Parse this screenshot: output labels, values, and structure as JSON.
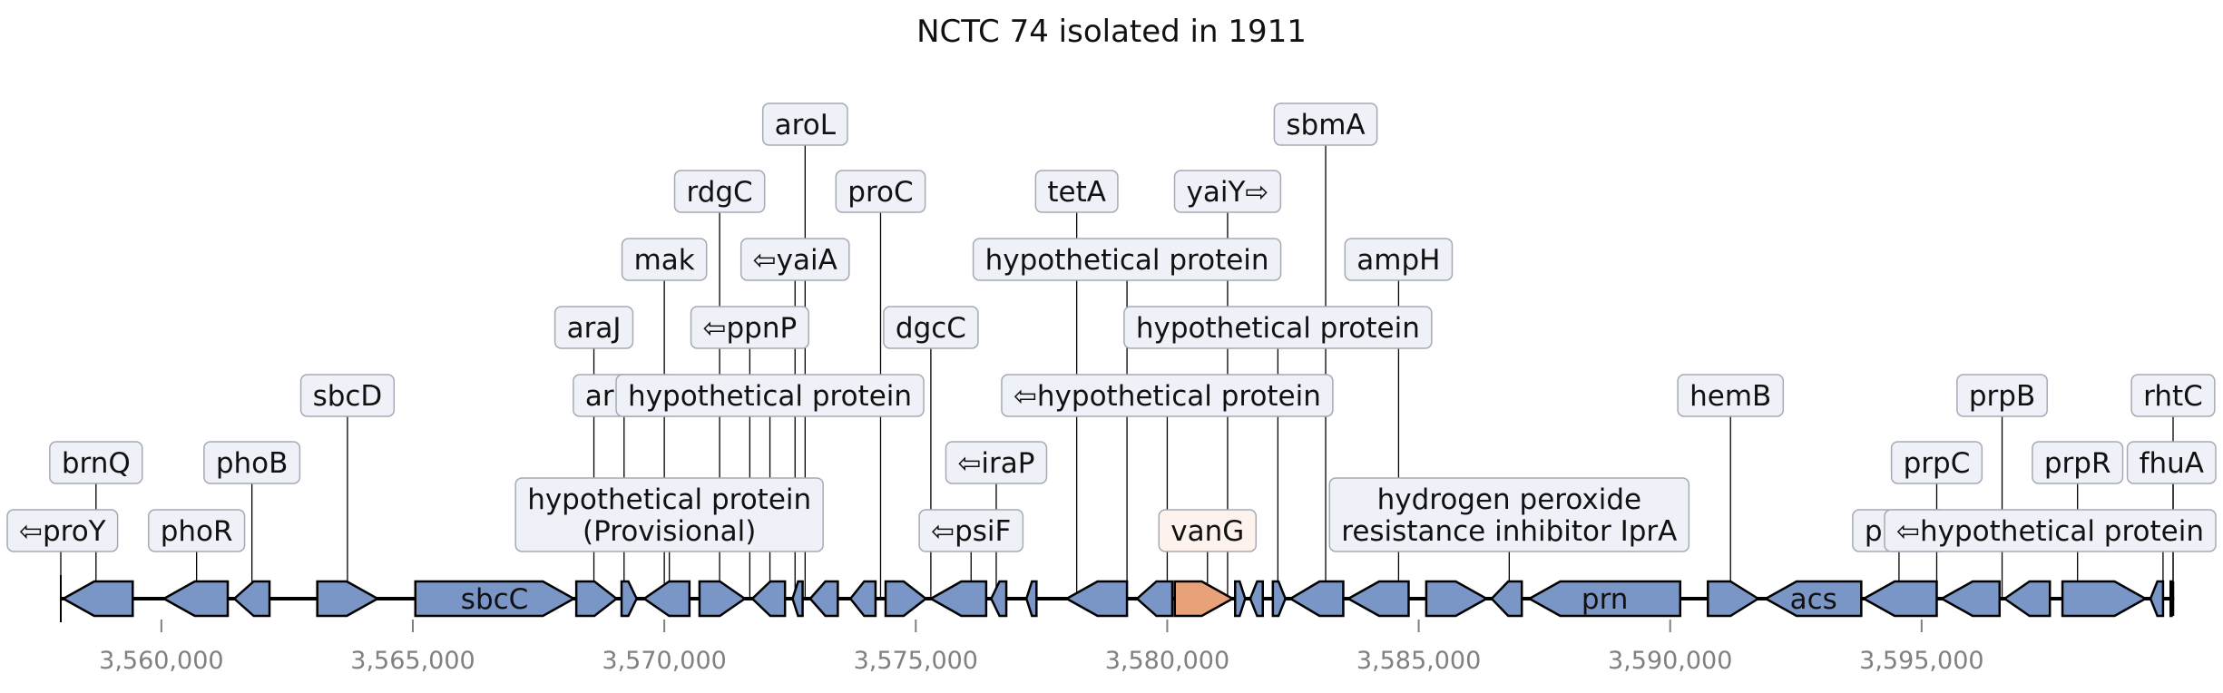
{
  "title": "NCTC 74 isolated in 1911",
  "colors": {
    "gene_fill": "#7a96c6",
    "highlight_fill": "#e8a27a",
    "box_fill": "#eef1f7",
    "highlight_box_fill": "#fdf2ec",
    "box_stroke": "#a7aab4",
    "axis_tick": "#808080"
  },
  "axis": {
    "range": [
      3558000,
      3600000
    ],
    "ticks": [
      {
        "value": 3560000,
        "label": "3,560,000"
      },
      {
        "value": 3565000,
        "label": "3,565,000"
      },
      {
        "value": 3570000,
        "label": "3,570,000"
      },
      {
        "value": 3575000,
        "label": "3,575,000"
      },
      {
        "value": 3580000,
        "label": "3,580,000"
      },
      {
        "value": 3585000,
        "label": "3,585,000"
      },
      {
        "value": 3590000,
        "label": "3,590,000"
      },
      {
        "value": 3595000,
        "label": "3,595,000"
      }
    ]
  },
  "genes": [
    {
      "start": 3558050,
      "end": 3559430,
      "strand": -1
    },
    {
      "start": 3560050,
      "end": 3561320,
      "strand": -1
    },
    {
      "start": 3561450,
      "end": 3562150,
      "strand": -1
    },
    {
      "start": 3563100,
      "end": 3564300,
      "strand": 1
    },
    {
      "start": 3565050,
      "end": 3568200,
      "strand": 1,
      "label": "sbcC"
    },
    {
      "start": 3568250,
      "end": 3569050,
      "strand": 1
    },
    {
      "start": 3569150,
      "end": 3569450,
      "strand": 1
    },
    {
      "start": 3569600,
      "end": 3570500,
      "strand": -1
    },
    {
      "start": 3570700,
      "end": 3571600,
      "strand": 1
    },
    {
      "start": 3571750,
      "end": 3572400,
      "strand": -1
    },
    {
      "start": 3572550,
      "end": 3572750,
      "strand": -1
    },
    {
      "start": 3572900,
      "end": 3573450,
      "strand": -1
    },
    {
      "start": 3573700,
      "end": 3574200,
      "strand": -1
    },
    {
      "start": 3574400,
      "end": 3575200,
      "strand": 1
    },
    {
      "start": 3575300,
      "end": 3576400,
      "strand": -1
    },
    {
      "start": 3576500,
      "end": 3576800,
      "strand": -1
    },
    {
      "start": 3577200,
      "end": 3577400,
      "strand": -1
    },
    {
      "start": 3578000,
      "end": 3579200,
      "strand": -1
    },
    {
      "start": 3579400,
      "end": 3580100,
      "strand": -1
    },
    {
      "start": 3580150,
      "end": 3581300,
      "strand": 1,
      "highlight": true
    },
    {
      "start": 3581350,
      "end": 3581550,
      "strand": 1
    },
    {
      "start": 3581650,
      "end": 3581900,
      "strand": -1
    },
    {
      "start": 3582100,
      "end": 3582350,
      "strand": 1
    },
    {
      "start": 3582450,
      "end": 3583500,
      "strand": -1
    },
    {
      "start": 3583600,
      "end": 3584800,
      "strand": -1
    },
    {
      "start": 3585150,
      "end": 3586350,
      "strand": 1
    },
    {
      "start": 3586450,
      "end": 3587050,
      "strand": -1
    },
    {
      "start": 3587200,
      "end": 3590200,
      "strand": -1,
      "label": "prn"
    },
    {
      "start": 3590750,
      "end": 3591750,
      "strand": 1
    },
    {
      "start": 3591900,
      "end": 3593800,
      "strand": -1,
      "label": "acs"
    },
    {
      "start": 3593850,
      "end": 3595300,
      "strand": -1
    },
    {
      "start": 3595400,
      "end": 3596550,
      "strand": -1
    },
    {
      "start": 3596650,
      "end": 3597550,
      "strand": -1
    },
    {
      "start": 3597800,
      "end": 3599450,
      "strand": 1
    },
    {
      "start": 3599550,
      "end": 3599800,
      "strand": -1
    },
    {
      "start": 3599950,
      "end": 3600350,
      "strand": 1
    },
    {
      "start": 3600500,
      "end": 3601700,
      "strand": -1
    }
  ],
  "annotations": [
    {
      "lines": [
        "⇦proY"
      ],
      "pos": 3558000,
      "level": 0
    },
    {
      "lines": [
        "brnQ"
      ],
      "pos": 3558700,
      "level": 1
    },
    {
      "lines": [
        "phoR"
      ],
      "pos": 3560700,
      "level": 0
    },
    {
      "lines": [
        "phoB"
      ],
      "pos": 3561800,
      "level": 1
    },
    {
      "lines": [
        "sbcD"
      ],
      "pos": 3563700,
      "level": 2
    },
    {
      "lines": [
        "araJ"
      ],
      "pos": 3568600,
      "level": 3
    },
    {
      "lines": [
        "araJ⇨"
      ],
      "pos": 3569200,
      "level": 2
    },
    {
      "lines": [
        "mak"
      ],
      "pos": 3570000,
      "level": 4
    },
    {
      "lines": [
        "hypothetical protein",
        "(Provisional)"
      ],
      "pos": 3570100,
      "level": 0
    },
    {
      "lines": [
        "rdgC"
      ],
      "pos": 3571100,
      "level": 5
    },
    {
      "lines": [
        "⇦ppnP"
      ],
      "pos": 3571700,
      "level": 3
    },
    {
      "lines": [
        "hypothetical protein"
      ],
      "pos": 3572100,
      "level": 2
    },
    {
      "lines": [
        "⇦yaiA"
      ],
      "pos": 3572600,
      "level": 4
    },
    {
      "lines": [
        "aroL"
      ],
      "pos": 3572800,
      "level": 6
    },
    {
      "lines": [
        "proC"
      ],
      "pos": 3574300,
      "level": 5
    },
    {
      "lines": [
        "dgcC"
      ],
      "pos": 3575300,
      "level": 3
    },
    {
      "lines": [
        "⇦psiF"
      ],
      "pos": 3576100,
      "level": 0
    },
    {
      "lines": [
        "⇦iraP"
      ],
      "pos": 3576600,
      "level": 1
    },
    {
      "lines": [
        "tetA"
      ],
      "pos": 3578200,
      "level": 5
    },
    {
      "lines": [
        "hypothetical protein"
      ],
      "pos": 3579200,
      "level": 4
    },
    {
      "lines": [
        "⇦hypothetical protein"
      ],
      "pos": 3580000,
      "level": 2
    },
    {
      "lines": [
        "vanG"
      ],
      "pos": 3580800,
      "level": 0,
      "highlight": true
    },
    {
      "lines": [
        "yaiY⇨"
      ],
      "pos": 3581200,
      "level": 5
    },
    {
      "lines": [
        "hypothetical protein"
      ],
      "pos": 3582200,
      "level": 3
    },
    {
      "lines": [
        "sbmA"
      ],
      "pos": 3583150,
      "level": 6
    },
    {
      "lines": [
        "ampH"
      ],
      "pos": 3584600,
      "level": 4
    },
    {
      "lines": [
        "hydrogen peroxide",
        "resistance inhibitor IprA"
      ],
      "pos": 3586800,
      "level": 0
    },
    {
      "lines": [
        "hemB"
      ],
      "pos": 3591200,
      "level": 2
    },
    {
      "lines": [
        "prpD"
      ],
      "pos": 3594550,
      "level": 0
    },
    {
      "lines": [
        "prpC"
      ],
      "pos": 3595300,
      "level": 1
    },
    {
      "lines": [
        "prpB"
      ],
      "pos": 3596600,
      "level": 2
    },
    {
      "lines": [
        "prpR"
      ],
      "pos": 3598100,
      "level": 1
    },
    {
      "lines": [
        "⇦hypothetical protein"
      ],
      "pos": 3599800,
      "level": 0
    },
    {
      "lines": [
        "rhtC"
      ],
      "pos": 3600250,
      "level": 2
    },
    {
      "lines": [
        "fhuA"
      ],
      "pos": 3601100,
      "level": 1
    }
  ]
}
